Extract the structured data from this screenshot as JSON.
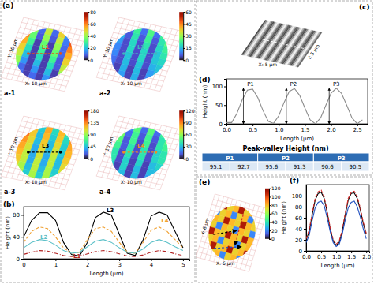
{
  "chart_data": [
    {
      "type": "heatmap",
      "panel_label": "(a)",
      "title": "a-1",
      "x_label": "X: 10 µm",
      "y_label": "Y: 10 µm",
      "annotations": [
        {
          "text": "L1",
          "color": "#e0521c"
        }
      ],
      "cells": [
        [
          70,
          40,
          10,
          45,
          10,
          50,
          15,
          75
        ],
        [
          60,
          35,
          8,
          40,
          8,
          45,
          12,
          65
        ],
        [
          55,
          30,
          5,
          35,
          5,
          40,
          10,
          60
        ],
        [
          50,
          25,
          5,
          30,
          5,
          35,
          10,
          55
        ],
        [
          45,
          20,
          5,
          25,
          5,
          30,
          8,
          50
        ],
        [
          40,
          15,
          5,
          20,
          5,
          25,
          8,
          45
        ],
        [
          35,
          10,
          5,
          15,
          5,
          20,
          5,
          40
        ],
        [
          30,
          10,
          5,
          10,
          5,
          15,
          5,
          35
        ]
      ],
      "colorbar_range": [
        0,
        80
      ],
      "colorbar_ticks": [
        0,
        20,
        40,
        60,
        80
      ]
    },
    {
      "type": "heatmap",
      "title": "a-2",
      "x_label": "X: 10 µm",
      "y_label": "Y: 10 µm",
      "annotations": [
        {
          "text": "L2",
          "color": "#3fb6c0"
        }
      ],
      "cells": [
        [
          20,
          8,
          22,
          8,
          24,
          8,
          22,
          30
        ],
        [
          15,
          6,
          20,
          6,
          22,
          6,
          20,
          25
        ],
        [
          12,
          5,
          18,
          5,
          20,
          5,
          18,
          22
        ],
        [
          10,
          5,
          18,
          5,
          18,
          5,
          16,
          20
        ],
        [
          10,
          5,
          16,
          5,
          18,
          5,
          16,
          18
        ],
        [
          8,
          5,
          15,
          5,
          16,
          5,
          14,
          16
        ],
        [
          8,
          4,
          14,
          4,
          15,
          4,
          12,
          15
        ],
        [
          6,
          4,
          12,
          4,
          14,
          4,
          10,
          12
        ]
      ],
      "colorbar_range": [
        0,
        60
      ],
      "colorbar_ticks": [
        0,
        15,
        30,
        45,
        60
      ]
    },
    {
      "type": "heatmap",
      "title": "a-3",
      "x_label": "X: 10 µm",
      "y_label": "Y: 10 µm",
      "annotations": [
        {
          "text": "L3",
          "color": "#000000"
        }
      ],
      "cells": [
        [
          150,
          120,
          50,
          125,
          55,
          120,
          60,
          140
        ],
        [
          140,
          115,
          45,
          120,
          50,
          115,
          55,
          130
        ],
        [
          130,
          110,
          45,
          115,
          45,
          110,
          50,
          125
        ],
        [
          125,
          105,
          40,
          110,
          45,
          105,
          50,
          120
        ],
        [
          120,
          100,
          40,
          105,
          40,
          100,
          45,
          115
        ],
        [
          115,
          100,
          40,
          100,
          40,
          100,
          45,
          110
        ],
        [
          110,
          95,
          45,
          100,
          45,
          95,
          50,
          105
        ],
        [
          105,
          95,
          50,
          95,
          50,
          95,
          55,
          100
        ]
      ],
      "colorbar_range": [
        0,
        180
      ],
      "colorbar_ticks": [
        0,
        45,
        90,
        135,
        180
      ]
    },
    {
      "type": "heatmap",
      "title": "a-4",
      "x_label": "X: 10 µm",
      "y_label": "Y: 10 µm",
      "annotations": [
        {
          "text": "L4",
          "color": "#f08a24"
        }
      ],
      "cells": [
        [
          65,
          20,
          50,
          15,
          50,
          15,
          45,
          60
        ],
        [
          55,
          15,
          45,
          12,
          45,
          12,
          40,
          50
        ],
        [
          50,
          12,
          45,
          10,
          45,
          10,
          40,
          45
        ],
        [
          45,
          12,
          40,
          10,
          40,
          10,
          35,
          40
        ],
        [
          40,
          10,
          40,
          10,
          40,
          10,
          35,
          40
        ],
        [
          40,
          10,
          35,
          8,
          35,
          8,
          30,
          35
        ],
        [
          35,
          8,
          35,
          8,
          30,
          8,
          30,
          30
        ],
        [
          30,
          8,
          30,
          8,
          30,
          8,
          25,
          30
        ]
      ],
      "colorbar_range": [
        0,
        120
      ],
      "colorbar_ticks": [
        0,
        30,
        60,
        90,
        120
      ]
    },
    {
      "type": "line",
      "panel_label": "(b)",
      "x_label": "Length (µm)",
      "y_label": "Height (nm)",
      "x": [
        0,
        0.25,
        0.5,
        0.75,
        1,
        1.25,
        1.5,
        1.75,
        2,
        2.25,
        2.5,
        2.75,
        3,
        3.25,
        3.5,
        3.75,
        4,
        4.25,
        4.5,
        4.75,
        5
      ],
      "series": [
        {
          "name": "L3",
          "color": "#000000",
          "line_style": "solid",
          "values": [
            40,
            70,
            84,
            84,
            70,
            30,
            8,
            5,
            30,
            75,
            85,
            80,
            45,
            10,
            6,
            35,
            78,
            85,
            80,
            50,
            20
          ]
        },
        {
          "name": "L4",
          "color": "#f0a030",
          "line_style": "dashed",
          "values": [
            30,
            50,
            58,
            55,
            40,
            20,
            10,
            12,
            35,
            55,
            58,
            50,
            30,
            12,
            10,
            30,
            52,
            58,
            50,
            35,
            20
          ]
        },
        {
          "name": "L2",
          "color": "#5bc0c8",
          "line_style": "solid",
          "values": [
            20,
            30,
            35,
            33,
            25,
            15,
            10,
            12,
            22,
            32,
            35,
            30,
            20,
            12,
            10,
            18,
            30,
            35,
            30,
            22,
            15
          ]
        },
        {
          "name": "L1",
          "color": "#b22222",
          "line_style": "dashdot",
          "values": [
            8,
            12,
            15,
            14,
            10,
            6,
            4,
            5,
            9,
            13,
            15,
            13,
            9,
            5,
            4,
            7,
            12,
            15,
            13,
            9,
            6
          ]
        }
      ],
      "xlim": [
        0,
        5.2
      ],
      "ylim": [
        0,
        95
      ],
      "xticks": [
        0,
        1,
        2,
        3,
        4,
        5
      ],
      "yticks": [
        0,
        40,
        80
      ]
    },
    {
      "type": "surface",
      "panel_label": "(c)",
      "x_label": "X: 5 µm",
      "y_label": "Y: 5 µm"
    },
    {
      "type": "line",
      "panel_label": "(d)",
      "x_label": "Length (µm)",
      "y_label": "Height (nm)",
      "x": [
        0,
        0.1,
        0.2,
        0.3,
        0.4,
        0.5,
        0.6,
        0.7,
        0.8,
        0.9,
        1,
        1.1,
        1.2,
        1.3,
        1.4,
        1.5,
        1.6,
        1.7,
        1.8,
        1.9,
        2,
        2.1,
        2.2,
        2.3,
        2.4,
        2.5,
        2.6
      ],
      "series": [
        {
          "color": "#8c8c8c",
          "line_style": "solid",
          "values": [
            3.5,
            3.5,
            28,
            63.6,
            90.1,
            92.8,
            70.1,
            35,
            6.8,
            1.2,
            21.7,
            56.5,
            86.4,
            94.5,
            76.2,
            42.1,
            10.7,
            0.1,
            15.9,
            49.3,
            81.7,
            95,
            81.4,
            49.3,
            15.9,
            0.1,
            10.9
          ]
        }
      ],
      "annotations": [
        {
          "text": "P1",
          "x": 0.46,
          "y": 95
        },
        {
          "text": "P2",
          "x": 1.28,
          "y": 95
        },
        {
          "text": "P3",
          "x": 2.1,
          "y": 95
        }
      ],
      "xlim": [
        0,
        2.7
      ],
      "ylim": [
        0,
        120
      ],
      "xticks": [
        {
          "value": 0,
          "label": "0.0"
        },
        0.5,
        {
          "value": 1,
          "label": "1.0"
        },
        1.5,
        {
          "value": 2,
          "label": "2.0"
        },
        2.5
      ],
      "yticks": [
        0,
        50,
        100
      ]
    },
    {
      "type": "table",
      "title": "Peak-valley Height (nm)",
      "columns": [
        "P1",
        "P2",
        "P3"
      ],
      "values": [
        [
          95.1,
          92.7
        ],
        [
          95.6,
          91.3
        ],
        [
          90.6,
          90.5
        ]
      ]
    },
    {
      "type": "heatmap",
      "panel_label": "(e)",
      "x_label": "X: 6 µm",
      "y_label": "Y: 6 µm",
      "colors": [
        "#000000",
        "#d62728",
        "#1f4fbf"
      ],
      "cells": [
        [
          80,
          110,
          75,
          80,
          110,
          75,
          80,
          110
        ],
        [
          20,
          75,
          80,
          20,
          75,
          80,
          20,
          75
        ],
        [
          80,
          75,
          110,
          80,
          75,
          110,
          80,
          75
        ],
        [
          75,
          20,
          80,
          75,
          20,
          80,
          75,
          20
        ],
        [
          110,
          80,
          75,
          110,
          80,
          75,
          110,
          80
        ],
        [
          75,
          80,
          20,
          75,
          80,
          20,
          75,
          80
        ],
        [
          80,
          110,
          75,
          80,
          110,
          75,
          80,
          110
        ],
        [
          20,
          75,
          80,
          20,
          75,
          80,
          20,
          75
        ]
      ],
      "colorbar_range": [
        0,
        120
      ],
      "colorbar_ticks": [
        0,
        20,
        40,
        60,
        80,
        100,
        120
      ]
    },
    {
      "type": "line",
      "panel_label": "(f)",
      "x_label": "Length (µm)",
      "y_label": "Height (nm)",
      "x": [
        0,
        0.1,
        0.2,
        0.3,
        0.4,
        0.5,
        0.6,
        0.7,
        0.8,
        0.9,
        1,
        1.1,
        1.2,
        1.3,
        1.4,
        1.5,
        1.6,
        1.7,
        1.8,
        1.9,
        2
      ],
      "series": [
        {
          "color": "#000000",
          "line_style": "solid",
          "values": [
            20,
            35,
            65,
            92,
            104,
            106,
            95,
            70,
            40,
            18,
            10,
            15,
            35,
            65,
            92,
            104,
            105,
            95,
            75,
            50,
            30
          ]
        },
        {
          "color": "#d62728",
          "line_style": "dashed",
          "values": [
            22,
            38,
            68,
            95,
            107,
            110,
            98,
            72,
            42,
            20,
            12,
            18,
            38,
            68,
            95,
            106,
            108,
            98,
            78,
            52,
            32
          ]
        },
        {
          "color": "#1f4fbf",
          "line_style": "solid",
          "values": [
            15,
            28,
            55,
            78,
            88,
            90,
            82,
            60,
            35,
            15,
            8,
            12,
            30,
            56,
            78,
            88,
            90,
            80,
            62,
            40,
            22
          ]
        }
      ],
      "xlim": [
        0,
        2.1
      ],
      "ylim": [
        0,
        120
      ],
      "xticks": [
        {
          "value": 0,
          "label": "0.0"
        },
        0.5,
        {
          "value": 1,
          "label": "1.0"
        },
        1.5,
        {
          "value": 2,
          "label": "2.0"
        }
      ],
      "yticks": [
        0,
        20,
        40,
        60,
        80,
        100
      ]
    }
  ]
}
